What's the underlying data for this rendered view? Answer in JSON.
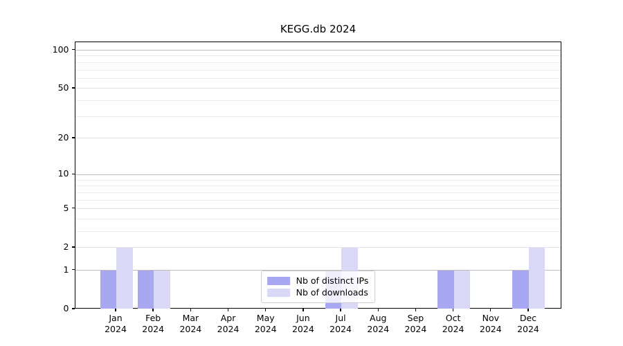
{
  "chart_data": {
    "type": "bar",
    "title": "KEGG.db 2024",
    "categories": [
      "Jan",
      "Feb",
      "Mar",
      "Apr",
      "May",
      "Jun",
      "Jul",
      "Aug",
      "Sep",
      "Oct",
      "Nov",
      "Dec"
    ],
    "category_year": "2024",
    "series": [
      {
        "name": "Nb of distinct IPs",
        "color": "#a8a8f2",
        "values": [
          1,
          1,
          0,
          0,
          0,
          0,
          1,
          0,
          0,
          1,
          0,
          1
        ]
      },
      {
        "name": "Nb of downloads",
        "color": "#d9d9f7",
        "values": [
          2,
          1,
          0,
          0,
          0,
          0,
          2,
          0,
          0,
          1,
          0,
          2
        ]
      }
    ],
    "xlabel": "",
    "ylabel": "",
    "yscale": "log1p",
    "ylim": [
      0,
      116
    ],
    "y_tick_labels": [
      100,
      50,
      20,
      10,
      5,
      2,
      1,
      0
    ],
    "y_gridlines_major": [
      1,
      10,
      100
    ],
    "y_gridlines_mid": [
      2,
      5,
      20,
      50
    ],
    "y_gridlines_minor": [
      3,
      4,
      6,
      7,
      8,
      9,
      30,
      40,
      60,
      70,
      80,
      90
    ],
    "grid": "horizontal",
    "legend_position": "lower center",
    "axis_color": "#000000",
    "background_color": "#ffffff"
  }
}
